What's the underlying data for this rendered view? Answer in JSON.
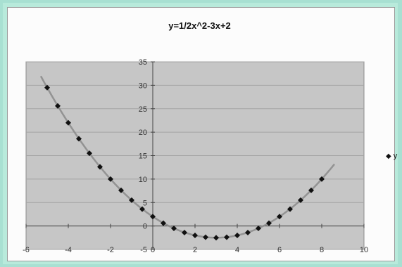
{
  "chart_data": {
    "type": "scatter",
    "title": "y=1/2x^2-3x+2",
    "xlabel": "",
    "ylabel": "",
    "xlim": [
      -6,
      10
    ],
    "ylim": [
      -5,
      35
    ],
    "xticks": [
      -6,
      -4,
      -2,
      0,
      2,
      4,
      6,
      8,
      10
    ],
    "yticks": [
      -5,
      0,
      5,
      10,
      15,
      20,
      25,
      30,
      35
    ],
    "grid": true,
    "legend_position": "right",
    "series": [
      {
        "name": "y",
        "marker": "diamond",
        "color": "#111111",
        "trend_color": "#8a8a8a",
        "x": [
          -5,
          -4.5,
          -4,
          -3.5,
          -3,
          -2.5,
          -2,
          -1.5,
          -1,
          -0.5,
          0,
          0.5,
          1,
          1.5,
          2,
          2.5,
          3,
          3.5,
          4,
          4.5,
          5,
          5.5,
          6,
          6.5,
          7,
          7.5,
          8
        ],
        "y": [
          29.5,
          25.6,
          22,
          18.6,
          15.5,
          12.6,
          10,
          7.6,
          5.5,
          3.6,
          2,
          0.6,
          -0.5,
          -1.4,
          -2,
          -2.4,
          -2.5,
          -2.4,
          -2,
          -1.4,
          -0.5,
          0.6,
          2,
          3.6,
          5.5,
          7.6,
          10
        ]
      }
    ]
  }
}
